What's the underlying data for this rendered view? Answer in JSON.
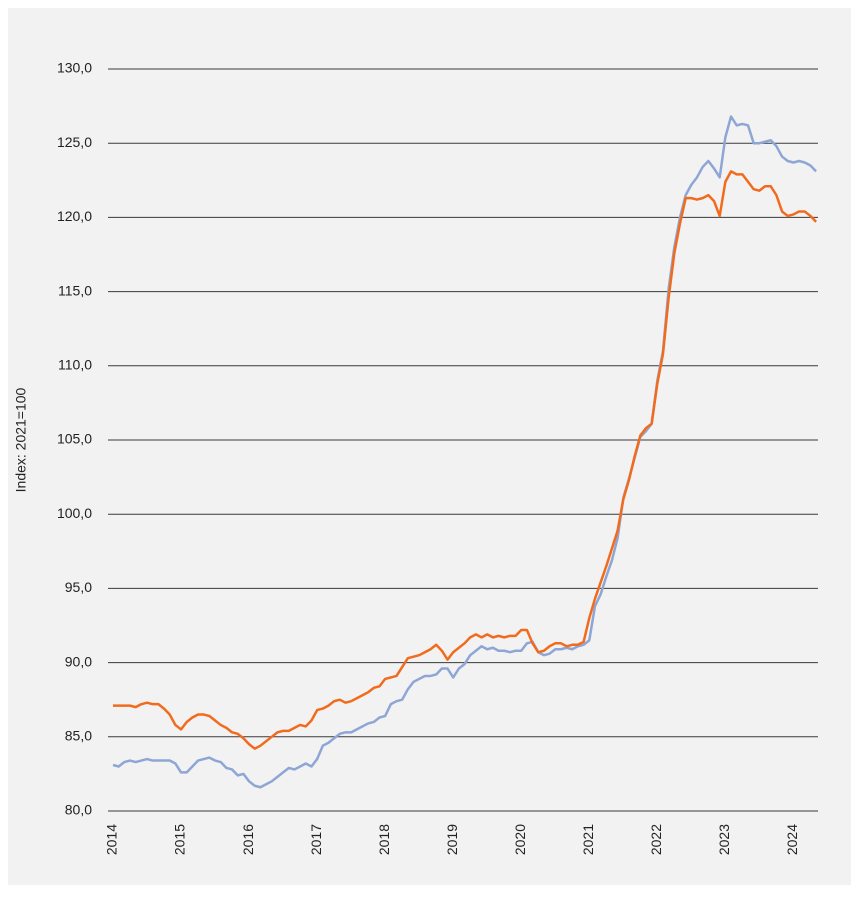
{
  "chart_data": {
    "type": "line",
    "y_label": "Index: 2021=100",
    "categories": [
      "2014",
      null,
      null,
      null,
      null,
      null,
      null,
      null,
      null,
      null,
      null,
      null,
      "2015",
      null,
      null,
      null,
      null,
      null,
      null,
      null,
      null,
      null,
      null,
      null,
      "2016",
      null,
      null,
      null,
      null,
      null,
      null,
      null,
      null,
      null,
      null,
      null,
      "2017",
      null,
      null,
      null,
      null,
      null,
      null,
      null,
      null,
      null,
      null,
      null,
      "2018",
      null,
      null,
      null,
      null,
      null,
      null,
      null,
      null,
      null,
      null,
      null,
      "2019",
      null,
      null,
      null,
      null,
      null,
      null,
      null,
      null,
      null,
      null,
      null,
      "2020",
      null,
      null,
      null,
      null,
      null,
      null,
      null,
      null,
      null,
      null,
      null,
      "2021",
      null,
      null,
      null,
      null,
      null,
      null,
      null,
      null,
      null,
      null,
      null,
      "2022",
      null,
      null,
      null,
      null,
      null,
      null,
      null,
      null,
      null,
      null,
      null,
      "2023",
      null,
      null,
      null,
      null,
      null,
      null,
      null,
      null,
      null,
      null,
      null,
      "2024",
      null,
      null,
      null,
      null
    ],
    "series": [
      {
        "color": "#8ea6d6",
        "values": [
          83.1,
          83.0,
          83.3,
          83.4,
          83.3,
          83.4,
          83.5,
          83.4,
          83.4,
          83.4,
          83.4,
          83.2,
          82.6,
          82.6,
          83.0,
          83.4,
          83.5,
          83.6,
          83.4,
          83.3,
          82.9,
          82.8,
          82.4,
          82.5,
          82.0,
          81.7,
          81.6,
          81.8,
          82.0,
          82.3,
          82.6,
          82.9,
          82.8,
          83.0,
          83.2,
          83.0,
          83.5,
          84.4,
          84.6,
          84.9,
          85.2,
          85.3,
          85.3,
          85.5,
          85.7,
          85.9,
          86.0,
          86.3,
          86.4,
          87.2,
          87.4,
          87.5,
          88.2,
          88.7,
          88.9,
          89.1,
          89.1,
          89.2,
          89.6,
          89.6,
          89.0,
          89.6,
          89.9,
          90.5,
          90.8,
          91.1,
          90.9,
          91.0,
          90.8,
          90.8,
          90.7,
          90.8,
          90.8,
          91.3,
          91.4,
          90.7,
          90.5,
          90.6,
          90.9,
          90.9,
          91.0,
          90.9,
          91.1,
          91.2,
          91.5,
          93.8,
          94.6,
          95.8,
          96.9,
          98.4,
          101.1,
          102.4,
          103.8,
          105.2,
          105.6,
          106.1,
          109.0,
          111.0,
          115.2,
          118.0,
          120.0,
          121.5,
          122.2,
          122.7,
          123.4,
          123.8,
          123.3,
          122.7,
          125.4,
          126.8,
          126.2,
          126.3,
          126.2,
          125.0,
          125.0,
          125.1,
          125.2,
          124.8,
          124.1,
          123.8,
          123.7,
          123.8,
          123.7,
          123.5,
          123.1
        ]
      },
      {
        "color": "#f26b1d",
        "values": [
          87.1,
          87.1,
          87.1,
          87.1,
          87.0,
          87.2,
          87.3,
          87.2,
          87.2,
          86.9,
          86.5,
          85.8,
          85.5,
          86.0,
          86.3,
          86.5,
          86.5,
          86.4,
          86.1,
          85.8,
          85.6,
          85.3,
          85.2,
          84.9,
          84.5,
          84.2,
          84.4,
          84.7,
          85.0,
          85.3,
          85.4,
          85.4,
          85.6,
          85.8,
          85.7,
          86.1,
          86.8,
          86.9,
          87.1,
          87.4,
          87.5,
          87.3,
          87.4,
          87.6,
          87.8,
          88.0,
          88.3,
          88.4,
          88.9,
          89.0,
          89.1,
          89.7,
          90.3,
          90.4,
          90.5,
          90.7,
          90.9,
          91.2,
          90.8,
          90.2,
          90.7,
          91.0,
          91.3,
          91.7,
          91.9,
          91.7,
          91.9,
          91.7,
          91.8,
          91.7,
          91.8,
          91.8,
          92.2,
          92.2,
          91.3,
          90.7,
          90.8,
          91.1,
          91.3,
          91.3,
          91.1,
          91.2,
          91.2,
          91.4,
          93.0,
          94.3,
          95.4,
          96.5,
          97.7,
          98.9,
          101.0,
          102.3,
          103.9,
          105.3,
          105.8,
          106.1,
          108.8,
          110.8,
          114.6,
          117.6,
          119.6,
          121.3,
          121.3,
          121.2,
          121.3,
          121.5,
          121.1,
          120.1,
          122.4,
          123.1,
          122.9,
          122.9,
          122.4,
          121.9,
          121.8,
          122.1,
          122.1,
          121.5,
          120.4,
          120.1,
          120.2,
          120.4,
          120.4,
          120.1,
          119.7
        ]
      }
    ],
    "ylim": [
      80,
      130
    ],
    "yticks": [
      {
        "value": 80,
        "label": "80,0"
      },
      {
        "value": 85,
        "label": "85,0"
      },
      {
        "value": 90,
        "label": "90,0"
      },
      {
        "value": 95,
        "label": "95,0"
      },
      {
        "value": 100,
        "label": "100,0"
      },
      {
        "value": 105,
        "label": "105,0"
      },
      {
        "value": 110,
        "label": "110,0"
      },
      {
        "value": 115,
        "label": "115,0"
      },
      {
        "value": 120,
        "label": "120,0"
      },
      {
        "value": 125,
        "label": "125,0"
      },
      {
        "value": 130,
        "label": "130,0"
      }
    ],
    "grid": true
  }
}
